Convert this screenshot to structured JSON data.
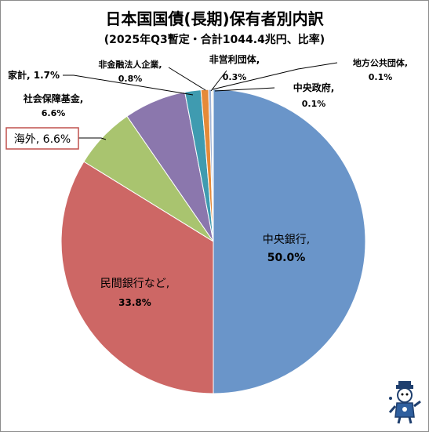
{
  "chart_data": {
    "type": "pie",
    "title": "日本国国債(長期)保有者別内訳",
    "subtitle": "(2025年Q3暫定・合計1044.4兆円、比率)",
    "slices": [
      {
        "label": "中央銀行",
        "value": 50.0,
        "text": "50.0%",
        "color": "#6a95c9"
      },
      {
        "label": "民間銀行など",
        "value": 33.8,
        "text": "33.8%",
        "color": "#cd6765"
      },
      {
        "label": "海外",
        "value": 6.6,
        "text": "6.6%",
        "color": "#a9c46f"
      },
      {
        "label": "社会保障基金",
        "value": 6.6,
        "text": "6.6%",
        "color": "#8b77ad"
      },
      {
        "label": "家計",
        "value": 1.7,
        "text": "1.7%",
        "color": "#3f9bb0"
      },
      {
        "label": "非金融法人企業",
        "value": 0.8,
        "text": "0.8%",
        "color": "#e58a38"
      },
      {
        "label": "非営利団体",
        "value": 0.3,
        "text": "0.3%",
        "color": "#9fb3d6"
      },
      {
        "label": "地方公共団体",
        "value": 0.1,
        "text": "0.1%",
        "color": "#d89a98"
      },
      {
        "label": "中央政府",
        "value": 0.1,
        "text": "0.1%",
        "color": "#c2d79b"
      }
    ]
  },
  "labels": {
    "central_bank": {
      "name": "中央銀行,",
      "pct": "50.0%"
    },
    "private_bank": {
      "name": "民間銀行など,",
      "pct": "33.8%"
    },
    "overseas": "海外, 6.6%",
    "social_security": {
      "name": "社会保障基金,",
      "pct": "6.6%"
    },
    "household": "家計, 1.7%",
    "nonfinancial": {
      "name": "非金融法人企業,",
      "pct": "0.8%"
    },
    "nonprofit": {
      "name": "非営利団体,",
      "pct": "0.3%"
    },
    "local_gov": {
      "name": "地方公共団体,",
      "pct": "0.1%"
    },
    "central_gov": {
      "name": "中央政府,",
      "pct": "0.1%"
    }
  },
  "colors": {
    "callout_border": "#c0504d",
    "leader_line": "#000000"
  },
  "icons": {
    "mascot": "mascot-icon"
  }
}
